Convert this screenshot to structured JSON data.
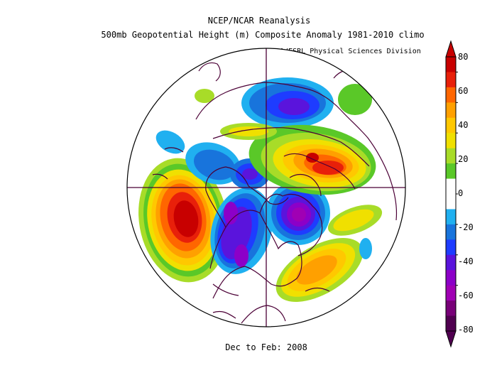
{
  "header": {
    "line1": "NCEP/NCAR Reanalysis",
    "line2": "500mb Geopotential Height (m) Composite Anomaly 1981-2010 climo",
    "credit": "NOAA/ESRL Physical Sciences Division"
  },
  "footer": {
    "period": "Dec to Feb: 2008"
  },
  "colorbar": {
    "labels": [
      "80",
      "60",
      "40",
      "20",
      "0",
      "-20",
      "-40",
      "-60",
      "-80"
    ],
    "colors": [
      "#c80000",
      "#e8200a",
      "#ff6600",
      "#ffa000",
      "#ffc800",
      "#f0e000",
      "#a8dc28",
      "#5ac828",
      "#ffffff",
      "#ffffff",
      "#20b0f0",
      "#1874dc",
      "#1e3cff",
      "#5a14dc",
      "#8c00c8",
      "#a000b4",
      "#780078",
      "#500050"
    ]
  },
  "map": {
    "projection": "north-polar-stereographic",
    "features": [
      "anomaly-shading",
      "continent-outlines",
      "meridian-180-0",
      "meridian-90W-90E"
    ]
  }
}
